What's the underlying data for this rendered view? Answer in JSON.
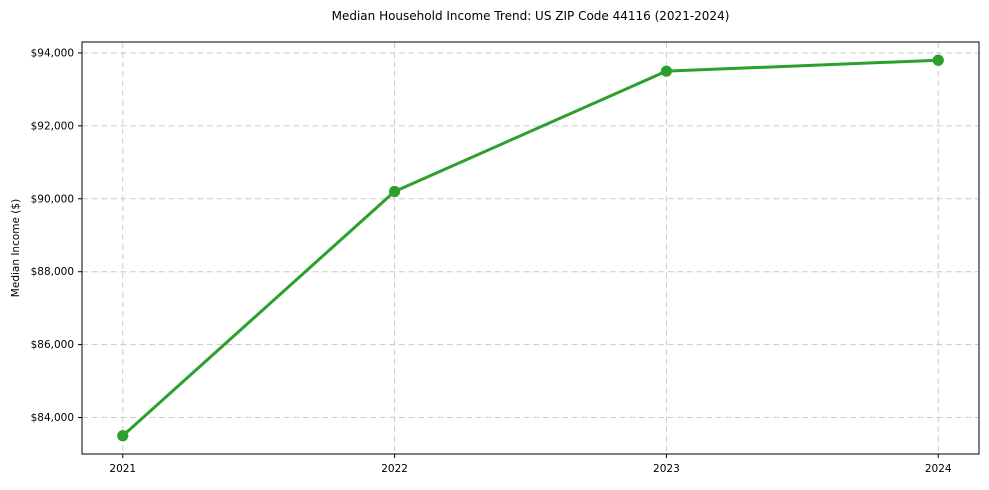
{
  "chart_data": {
    "type": "line",
    "title": "Median Household Income Trend: US ZIP Code 44116 (2021-2024)",
    "ylabel": "Median Income ($)",
    "xlabel": "",
    "categories": [
      "2021",
      "2022",
      "2023",
      "2024"
    ],
    "x": [
      2021,
      2022,
      2023,
      2024
    ],
    "series": [
      {
        "name": "Median Household Income",
        "values": [
          83500,
          90200,
          93500,
          93800
        ]
      }
    ],
    "yticks": [
      84000,
      86000,
      88000,
      90000,
      92000,
      94000
    ],
    "ytick_labels": [
      "$84,000",
      "$86,000",
      "$88,000",
      "$90,000",
      "$92,000",
      "$94,000"
    ],
    "xlim": [
      2020.85,
      2024.15
    ],
    "ylim": [
      83000,
      94300
    ],
    "grid": true,
    "grid_style": "dashed",
    "legend": "none",
    "line_color": "#2ca02c",
    "marker": "circle",
    "grid_color": "#cccccc",
    "axis_color": "#000000",
    "background_color": "#ffffff"
  }
}
